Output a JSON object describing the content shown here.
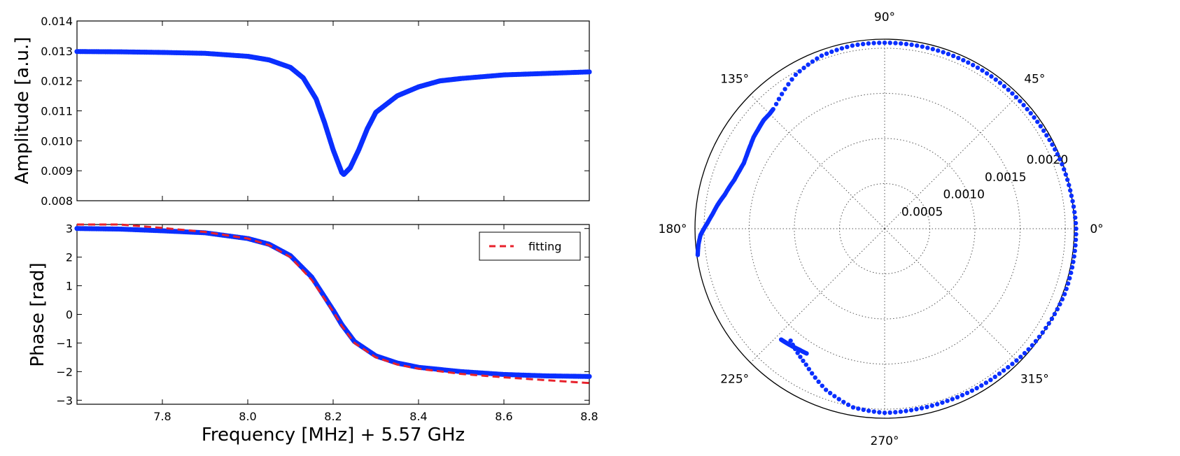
{
  "figure": {
    "shared_xlabel": "Frequency [MHz] + 5.57 GHz"
  },
  "colors": {
    "data": "#0a2fff",
    "fit": "#e8212b",
    "axis": "#000000",
    "grid": "#555555"
  },
  "chart_data": [
    {
      "type": "scatter",
      "panel": "amplitude",
      "xlabel": "",
      "ylabel": "Amplitude [a.u.]",
      "xlim": [
        7.6,
        8.8
      ],
      "ylim": [
        0.008,
        0.014
      ],
      "xticks": [
        7.8,
        8.0,
        8.2,
        8.4,
        8.6,
        8.8
      ],
      "yticks": [
        0.008,
        0.009,
        0.01,
        0.011,
        0.012,
        0.013,
        0.014
      ],
      "ytick_labels": [
        "0.008",
        "0.009",
        "0.010",
        "0.011",
        "0.012",
        "0.013",
        "0.014"
      ],
      "xtick_labels_visible": false,
      "series": [
        {
          "kind": "points",
          "x": [
            7.6,
            7.7,
            7.8,
            7.9,
            8.0,
            8.05,
            8.1,
            8.13,
            8.16,
            8.18,
            8.2,
            8.22,
            8.225,
            8.24,
            8.26,
            8.28,
            8.3,
            8.35,
            8.4,
            8.45,
            8.5,
            8.6,
            8.7,
            8.8
          ],
          "y": [
            0.01298,
            0.01297,
            0.01295,
            0.01292,
            0.01282,
            0.0127,
            0.01245,
            0.0121,
            0.0114,
            0.0106,
            0.0097,
            0.00895,
            0.00888,
            0.0091,
            0.0097,
            0.0104,
            0.01095,
            0.0115,
            0.0118,
            0.012,
            0.01208,
            0.0122,
            0.01225,
            0.0123
          ]
        }
      ]
    },
    {
      "type": "line",
      "panel": "phase",
      "xlabel": "Frequency [MHz] + 5.57 GHz",
      "ylabel": "Phase [rad]",
      "xlim": [
        7.6,
        8.8
      ],
      "ylim": [
        -3.14,
        3.14
      ],
      "xticks": [
        7.8,
        8.0,
        8.2,
        8.4,
        8.6,
        8.8
      ],
      "xtick_labels": [
        "7.8",
        "8.0",
        "8.2",
        "8.4",
        "8.6",
        "8.8"
      ],
      "yticks": [
        3,
        2,
        1,
        0,
        -1,
        -2,
        -3
      ],
      "ytick_labels": [
        "3",
        "2",
        "1",
        "0",
        "−1",
        "−2",
        "−3"
      ],
      "legend": {
        "placement": "top-right",
        "entries": [
          "fitting"
        ]
      },
      "series": [
        {
          "kind": "points",
          "x": [
            7.6,
            7.7,
            7.8,
            7.9,
            8.0,
            8.05,
            8.1,
            8.15,
            8.2,
            8.22,
            8.25,
            8.3,
            8.35,
            8.4,
            8.5,
            8.6,
            8.7,
            8.8
          ],
          "y": [
            3.0,
            2.98,
            2.92,
            2.85,
            2.65,
            2.45,
            2.05,
            1.3,
            0.15,
            -0.35,
            -0.95,
            -1.45,
            -1.7,
            -1.85,
            -2.0,
            -2.1,
            -2.15,
            -2.17
          ]
        },
        {
          "kind": "fit",
          "name": "fitting",
          "x": [
            7.6,
            7.7,
            7.8,
            7.9,
            8.0,
            8.05,
            8.1,
            8.15,
            8.2,
            8.22,
            8.25,
            8.3,
            8.35,
            8.4,
            8.5,
            8.6,
            8.7,
            8.8
          ],
          "y": [
            3.25,
            3.14,
            3.02,
            2.88,
            2.65,
            2.42,
            2.0,
            1.2,
            0.1,
            -0.4,
            -1.0,
            -1.5,
            -1.75,
            -1.9,
            -2.08,
            -2.2,
            -2.3,
            -2.4
          ]
        }
      ]
    },
    {
      "type": "scatter",
      "panel": "polar",
      "projection": "polar",
      "rmax": 0.0021,
      "rticks": [
        0.0005,
        0.001,
        0.0015,
        0.002
      ],
      "rtick_labels": [
        "0.0005",
        "0.0010",
        "0.0015",
        "0.0020"
      ],
      "theta_labels": [
        "0°",
        "45°",
        "90°",
        "135°",
        "180°",
        "225°",
        "270°",
        "315°"
      ],
      "grid": true,
      "series": [
        {
          "kind": "points",
          "theta_deg": [
            131,
            120,
            110,
            100,
            90,
            80,
            70,
            60,
            50,
            40,
            30,
            20,
            10,
            0,
            -10,
            -20,
            -30,
            -40,
            -50,
            -60,
            -70,
            -80,
            -90,
            -100,
            -110,
            -120,
            -130
          ],
          "r": [
            0.00183,
            0.00197,
            0.00204,
            0.00206,
            0.00206,
            0.00206,
            0.00206,
            0.00206,
            0.00206,
            0.00206,
            0.00207,
            0.00209,
            0.0021,
            0.00212,
            0.00212,
            0.00212,
            0.0021,
            0.00208,
            0.00205,
            0.00204,
            0.00203,
            0.00203,
            0.00204,
            0.00201,
            0.0019,
            0.00174,
            0.00162
          ]
        },
        {
          "kind": "points",
          "theta_deg": [
            188,
            185,
            182,
            180,
            178,
            175,
            172,
            170,
            168,
            165,
            162,
            160,
            158,
            155,
            152,
            150,
            148,
            145,
            142,
            140,
            138,
            135,
            133
          ],
          "r": [
            0.00209,
            0.00207,
            0.00204,
            0.002,
            0.00196,
            0.00191,
            0.00187,
            0.00184,
            0.00181,
            0.00178,
            0.00175,
            0.00174,
            0.00173,
            0.00172,
            0.00173,
            0.00174,
            0.00175,
            0.00177,
            0.00178,
            0.00179,
            0.0018,
            0.0018,
            0.00181
          ]
        },
        {
          "kind": "points",
          "theta_deg": [
            -133,
            -131,
            -129,
            -127,
            -125,
            -122
          ],
          "r": [
            0.00168,
            0.00167,
            0.00166,
            0.00165,
            0.00164,
            0.00163
          ]
        }
      ]
    }
  ]
}
